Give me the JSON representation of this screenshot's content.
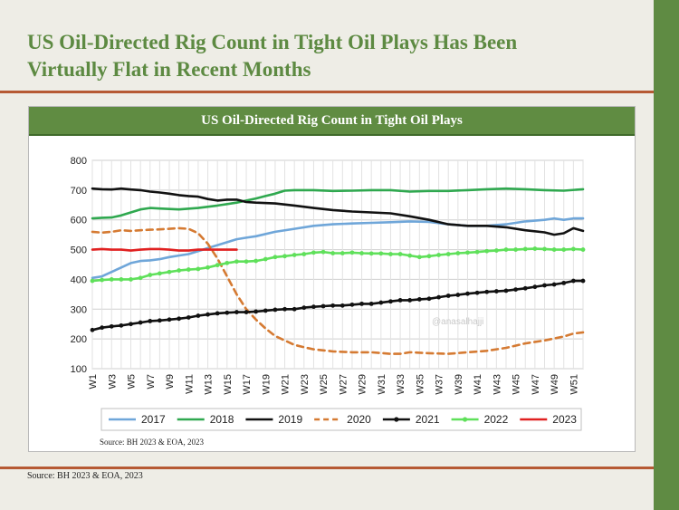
{
  "slide": {
    "title_line1": "US Oil-Directed Rig Count in Tight Oil Plays Has Been",
    "title_line2": "Virtually Flat in Recent Months",
    "source": "Source: BH 2023 & EOA, 2023"
  },
  "colors": {
    "brand_green": "#5f8b43",
    "rule_brown": "#b65a34"
  },
  "chart_data": {
    "type": "line",
    "title": "US Oil-Directed Rig Count in Tight Oil Plays",
    "source": "Source: BH 2023 & EOA, 2023",
    "watermark": "@anasalhajji",
    "ylim": [
      100,
      800
    ],
    "yticks": [
      100,
      200,
      300,
      400,
      500,
      600,
      700,
      800
    ],
    "grid": true,
    "legend_position": "bottom",
    "x_tick_labels": [
      "W1",
      "W3",
      "W5",
      "W7",
      "W9",
      "W11",
      "W13",
      "W15",
      "W17",
      "W19",
      "W21",
      "W23",
      "W25",
      "W27",
      "W29",
      "W31",
      "W33",
      "W35",
      "W37",
      "W39",
      "W41",
      "W43",
      "W45",
      "W47",
      "W49",
      "W51"
    ],
    "series": [
      {
        "name": "2017",
        "color": "#6fa6d9",
        "dash": "solid",
        "marker": "none",
        "points": [
          [
            1,
            405
          ],
          [
            2,
            410
          ],
          [
            3,
            425
          ],
          [
            4,
            440
          ],
          [
            5,
            455
          ],
          [
            6,
            462
          ],
          [
            7,
            464
          ],
          [
            8,
            468
          ],
          [
            9,
            475
          ],
          [
            10,
            480
          ],
          [
            11,
            485
          ],
          [
            12,
            495
          ],
          [
            13,
            505
          ],
          [
            14,
            515
          ],
          [
            15,
            525
          ],
          [
            16,
            535
          ],
          [
            17,
            540
          ],
          [
            18,
            545
          ],
          [
            20,
            560
          ],
          [
            22,
            570
          ],
          [
            24,
            580
          ],
          [
            26,
            585
          ],
          [
            28,
            588
          ],
          [
            30,
            590
          ],
          [
            32,
            592
          ],
          [
            34,
            595
          ],
          [
            36,
            593
          ],
          [
            38,
            585
          ],
          [
            40,
            580
          ],
          [
            42,
            580
          ],
          [
            44,
            585
          ],
          [
            46,
            595
          ],
          [
            48,
            600
          ],
          [
            49,
            605
          ],
          [
            50,
            600
          ],
          [
            51,
            605
          ],
          [
            52,
            605
          ]
        ]
      },
      {
        "name": "2018",
        "color": "#2fa84f",
        "dash": "solid",
        "marker": "none",
        "points": [
          [
            1,
            605
          ],
          [
            2,
            607
          ],
          [
            3,
            608
          ],
          [
            4,
            615
          ],
          [
            5,
            625
          ],
          [
            6,
            635
          ],
          [
            7,
            640
          ],
          [
            8,
            638
          ],
          [
            10,
            635
          ],
          [
            12,
            640
          ],
          [
            14,
            648
          ],
          [
            16,
            658
          ],
          [
            18,
            672
          ],
          [
            19,
            680
          ],
          [
            20,
            688
          ],
          [
            21,
            698
          ],
          [
            22,
            700
          ],
          [
            24,
            700
          ],
          [
            26,
            697
          ],
          [
            28,
            698
          ],
          [
            30,
            700
          ],
          [
            32,
            700
          ],
          [
            34,
            695
          ],
          [
            36,
            697
          ],
          [
            38,
            697
          ],
          [
            40,
            700
          ],
          [
            42,
            703
          ],
          [
            44,
            705
          ],
          [
            46,
            703
          ],
          [
            48,
            700
          ],
          [
            50,
            698
          ],
          [
            52,
            703
          ]
        ]
      },
      {
        "name": "2019",
        "color": "#111111",
        "dash": "solid",
        "marker": "none",
        "points": [
          [
            1,
            705
          ],
          [
            2,
            703
          ],
          [
            3,
            702
          ],
          [
            4,
            705
          ],
          [
            5,
            702
          ],
          [
            6,
            700
          ],
          [
            7,
            695
          ],
          [
            8,
            692
          ],
          [
            9,
            688
          ],
          [
            10,
            683
          ],
          [
            11,
            680
          ],
          [
            12,
            678
          ],
          [
            13,
            670
          ],
          [
            14,
            665
          ],
          [
            15,
            668
          ],
          [
            16,
            668
          ],
          [
            17,
            660
          ],
          [
            18,
            658
          ],
          [
            20,
            655
          ],
          [
            22,
            648
          ],
          [
            24,
            640
          ],
          [
            26,
            633
          ],
          [
            28,
            628
          ],
          [
            30,
            625
          ],
          [
            32,
            622
          ],
          [
            34,
            612
          ],
          [
            36,
            600
          ],
          [
            38,
            585
          ],
          [
            40,
            580
          ],
          [
            42,
            580
          ],
          [
            44,
            575
          ],
          [
            46,
            565
          ],
          [
            48,
            558
          ],
          [
            49,
            550
          ],
          [
            50,
            555
          ],
          [
            51,
            572
          ],
          [
            52,
            563
          ]
        ]
      },
      {
        "name": "2020",
        "color": "#d57a32",
        "dash": "dashed",
        "marker": "none",
        "points": [
          [
            1,
            560
          ],
          [
            2,
            557
          ],
          [
            3,
            560
          ],
          [
            4,
            565
          ],
          [
            5,
            563
          ],
          [
            6,
            565
          ],
          [
            7,
            567
          ],
          [
            8,
            568
          ],
          [
            9,
            570
          ],
          [
            10,
            572
          ],
          [
            11,
            570
          ],
          [
            12,
            555
          ],
          [
            13,
            520
          ],
          [
            14,
            470
          ],
          [
            15,
            410
          ],
          [
            16,
            350
          ],
          [
            17,
            300
          ],
          [
            18,
            265
          ],
          [
            19,
            235
          ],
          [
            20,
            210
          ],
          [
            21,
            195
          ],
          [
            22,
            180
          ],
          [
            23,
            172
          ],
          [
            24,
            165
          ],
          [
            26,
            158
          ],
          [
            28,
            155
          ],
          [
            30,
            155
          ],
          [
            32,
            150
          ],
          [
            33,
            150
          ],
          [
            34,
            155
          ],
          [
            36,
            152
          ],
          [
            38,
            150
          ],
          [
            40,
            155
          ],
          [
            42,
            160
          ],
          [
            44,
            170
          ],
          [
            46,
            185
          ],
          [
            48,
            195
          ],
          [
            50,
            208
          ],
          [
            51,
            218
          ],
          [
            52,
            222
          ]
        ]
      },
      {
        "name": "2021",
        "color": "#111111",
        "dash": "solid",
        "marker": "dot",
        "points": [
          [
            1,
            230
          ],
          [
            2,
            238
          ],
          [
            3,
            242
          ],
          [
            4,
            245
          ],
          [
            5,
            250
          ],
          [
            6,
            255
          ],
          [
            7,
            260
          ],
          [
            8,
            262
          ],
          [
            9,
            265
          ],
          [
            10,
            268
          ],
          [
            11,
            272
          ],
          [
            12,
            278
          ],
          [
            13,
            282
          ],
          [
            14,
            286
          ],
          [
            15,
            288
          ],
          [
            16,
            290
          ],
          [
            17,
            290
          ],
          [
            18,
            292
          ],
          [
            19,
            295
          ],
          [
            20,
            298
          ],
          [
            21,
            300
          ],
          [
            22,
            300
          ],
          [
            23,
            305
          ],
          [
            24,
            308
          ],
          [
            25,
            310
          ],
          [
            26,
            312
          ],
          [
            27,
            312
          ],
          [
            28,
            315
          ],
          [
            29,
            318
          ],
          [
            30,
            318
          ],
          [
            31,
            322
          ],
          [
            32,
            326
          ],
          [
            33,
            330
          ],
          [
            34,
            330
          ],
          [
            35,
            333
          ],
          [
            36,
            335
          ],
          [
            37,
            340
          ],
          [
            38,
            345
          ],
          [
            39,
            348
          ],
          [
            40,
            352
          ],
          [
            41,
            355
          ],
          [
            42,
            358
          ],
          [
            43,
            360
          ],
          [
            44,
            362
          ],
          [
            45,
            366
          ],
          [
            46,
            370
          ],
          [
            47,
            375
          ],
          [
            48,
            380
          ],
          [
            49,
            383
          ],
          [
            50,
            388
          ],
          [
            51,
            395
          ],
          [
            52,
            395
          ]
        ]
      },
      {
        "name": "2022",
        "color": "#5fe05a",
        "dash": "solid",
        "marker": "dot",
        "points": [
          [
            1,
            395
          ],
          [
            2,
            398
          ],
          [
            3,
            400
          ],
          [
            4,
            400
          ],
          [
            5,
            400
          ],
          [
            6,
            405
          ],
          [
            7,
            415
          ],
          [
            8,
            420
          ],
          [
            9,
            425
          ],
          [
            10,
            430
          ],
          [
            11,
            433
          ],
          [
            12,
            435
          ],
          [
            13,
            440
          ],
          [
            14,
            448
          ],
          [
            15,
            455
          ],
          [
            16,
            460
          ],
          [
            17,
            460
          ],
          [
            18,
            462
          ],
          [
            19,
            468
          ],
          [
            20,
            475
          ],
          [
            21,
            478
          ],
          [
            22,
            482
          ],
          [
            23,
            485
          ],
          [
            24,
            490
          ],
          [
            25,
            492
          ],
          [
            26,
            488
          ],
          [
            27,
            488
          ],
          [
            28,
            490
          ],
          [
            29,
            488
          ],
          [
            30,
            487
          ],
          [
            31,
            487
          ],
          [
            32,
            485
          ],
          [
            33,
            485
          ],
          [
            34,
            480
          ],
          [
            35,
            475
          ],
          [
            36,
            478
          ],
          [
            37,
            482
          ],
          [
            38,
            485
          ],
          [
            39,
            488
          ],
          [
            40,
            490
          ],
          [
            41,
            492
          ],
          [
            42,
            495
          ],
          [
            43,
            497
          ],
          [
            44,
            500
          ],
          [
            45,
            500
          ],
          [
            46,
            502
          ],
          [
            47,
            503
          ],
          [
            48,
            502
          ],
          [
            49,
            500
          ],
          [
            50,
            500
          ],
          [
            51,
            502
          ],
          [
            52,
            500
          ]
        ]
      },
      {
        "name": "2023",
        "color": "#e02020",
        "dash": "solid",
        "marker": "none",
        "points": [
          [
            1,
            500
          ],
          [
            2,
            502
          ],
          [
            3,
            500
          ],
          [
            4,
            500
          ],
          [
            5,
            497
          ],
          [
            6,
            500
          ],
          [
            7,
            502
          ],
          [
            8,
            502
          ],
          [
            9,
            500
          ],
          [
            10,
            497
          ],
          [
            11,
            497
          ],
          [
            12,
            500
          ],
          [
            13,
            500
          ],
          [
            14,
            500
          ],
          [
            15,
            500
          ],
          [
            16,
            500
          ]
        ]
      }
    ]
  }
}
